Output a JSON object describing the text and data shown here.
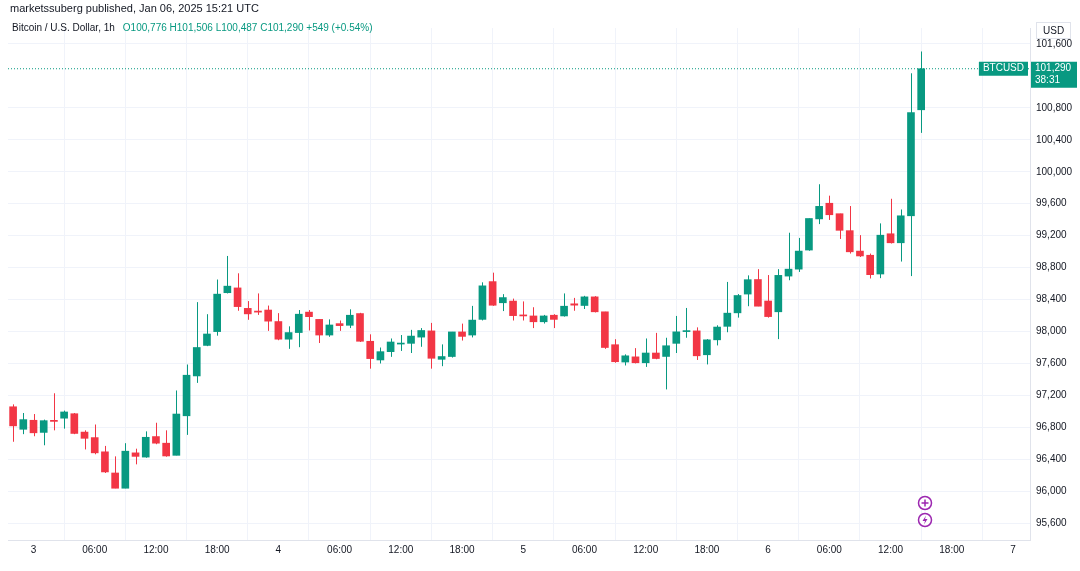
{
  "chart_data": {
    "type": "candlestick",
    "title": "Bitcoin / U.S. Dollar, 1h",
    "subtitle": "O100,776 H101,506 L100,487 C101,290 +549 (+0.54%)",
    "ylabel": "USD",
    "annotations": [
      "marketssuberg published, Jan 06, 2025 15:21 UTC",
      "38:31",
      "101,290"
    ],
    "x": [
      "2025-01-02T22:00",
      "2025-01-02T23:00",
      "2025-01-03T00:00",
      "2025-01-03T01:00",
      "2025-01-03T02:00",
      "2025-01-03T03:00",
      "2025-01-03T04:00",
      "2025-01-03T05:00",
      "2025-01-03T06:00",
      "2025-01-03T07:00",
      "2025-01-03T08:00",
      "2025-01-03T09:00",
      "2025-01-03T10:00",
      "2025-01-03T11:00",
      "2025-01-03T12:00",
      "2025-01-03T13:00",
      "2025-01-03T14:00",
      "2025-01-03T15:00",
      "2025-01-03T16:00",
      "2025-01-03T17:00",
      "2025-01-03T18:00",
      "2025-01-03T19:00",
      "2025-01-03T20:00",
      "2025-01-03T21:00",
      "2025-01-03T22:00",
      "2025-01-03T23:00",
      "2025-01-04T00:00",
      "2025-01-04T01:00",
      "2025-01-04T02:00",
      "2025-01-04T03:00",
      "2025-01-04T04:00",
      "2025-01-04T05:00",
      "2025-01-04T06:00",
      "2025-01-04T07:00",
      "2025-01-04T08:00",
      "2025-01-04T09:00",
      "2025-01-04T10:00",
      "2025-01-04T11:00",
      "2025-01-04T12:00",
      "2025-01-04T13:00",
      "2025-01-04T14:00",
      "2025-01-04T15:00",
      "2025-01-04T16:00",
      "2025-01-04T17:00",
      "2025-01-04T18:00",
      "2025-01-04T19:00",
      "2025-01-04T20:00",
      "2025-01-04T21:00",
      "2025-01-04T22:00",
      "2025-01-04T23:00",
      "2025-01-05T00:00",
      "2025-01-05T01:00",
      "2025-01-05T02:00",
      "2025-01-05T03:00",
      "2025-01-05T04:00",
      "2025-01-05T05:00",
      "2025-01-05T06:00",
      "2025-01-05T07:00",
      "2025-01-05T08:00",
      "2025-01-05T09:00",
      "2025-01-05T10:00",
      "2025-01-05T11:00",
      "2025-01-05T12:00",
      "2025-01-05T13:00",
      "2025-01-05T14:00",
      "2025-01-05T15:00",
      "2025-01-05T16:00",
      "2025-01-05T17:00",
      "2025-01-05T18:00",
      "2025-01-05T19:00",
      "2025-01-05T20:00",
      "2025-01-05T21:00",
      "2025-01-05T22:00",
      "2025-01-05T23:00",
      "2025-01-06T00:00",
      "2025-01-06T01:00",
      "2025-01-06T02:00",
      "2025-01-06T03:00",
      "2025-01-06T04:00",
      "2025-01-06T05:00",
      "2025-01-06T06:00",
      "2025-01-06T07:00",
      "2025-01-06T08:00",
      "2025-01-06T09:00",
      "2025-01-06T10:00",
      "2025-01-06T11:00",
      "2025-01-06T12:00",
      "2025-01-06T13:00",
      "2025-01-06T14:00",
      "2025-01-06T15:00"
    ],
    "ohlc": [
      [
        97058,
        97088,
        96620,
        96819
      ],
      [
        96776,
        96980,
        96715,
        96897
      ],
      [
        96889,
        96967,
        96689,
        96732
      ],
      [
        96737,
        96897,
        96576,
        96884
      ],
      [
        96888,
        97227,
        96763,
        96875
      ],
      [
        96915,
        97010,
        96784,
        96993
      ],
      [
        96971,
        96980,
        96715,
        96724
      ],
      [
        96741,
        96763,
        96524,
        96663
      ],
      [
        96672,
        96836,
        96463,
        96481
      ],
      [
        96494,
        96568,
        96229,
        96242
      ],
      [
        96229,
        96437,
        96038,
        96038
      ],
      [
        96038,
        96602,
        96038,
        96502
      ],
      [
        96481,
        96533,
        96337,
        96437
      ],
      [
        96428,
        96750,
        96420,
        96676
      ],
      [
        96685,
        96858,
        96589,
        96602
      ],
      [
        96602,
        96763,
        96433,
        96442
      ],
      [
        96450,
        97262,
        96450,
        96967
      ],
      [
        96945,
        97587,
        96706,
        97453
      ],
      [
        97444,
        98368,
        97357,
        97800
      ],
      [
        97826,
        98217,
        97817,
        97969
      ],
      [
        97999,
        98651,
        97948,
        98468
      ],
      [
        98486,
        98946,
        98477,
        98568
      ],
      [
        98546,
        98729,
        98260,
        98312
      ],
      [
        98290,
        98381,
        98147,
        98221
      ],
      [
        98256,
        98477,
        98208,
        98243
      ],
      [
        98269,
        98325,
        98008,
        98130
      ],
      [
        98125,
        98230,
        97891,
        97904
      ],
      [
        97904,
        98065,
        97783,
        97987
      ],
      [
        97987,
        98269,
        97804,
        98217
      ],
      [
        98243,
        98269,
        98013,
        98186
      ],
      [
        98152,
        98152,
        97856,
        97956
      ],
      [
        97956,
        98152,
        97934,
        98082
      ],
      [
        98099,
        98138,
        98008,
        98074
      ],
      [
        98078,
        98278,
        98043,
        98204
      ],
      [
        98225,
        98234,
        97869,
        97878
      ],
      [
        97878,
        97965,
        97535,
        97661
      ],
      [
        97644,
        97800,
        97600,
        97748
      ],
      [
        97748,
        97913,
        97683,
        97869
      ],
      [
        97843,
        97956,
        97757,
        97852
      ],
      [
        97852,
        98021,
        97731,
        97943
      ],
      [
        97930,
        98043,
        97809,
        98013
      ],
      [
        98008,
        98108,
        97535,
        97665
      ],
      [
        97652,
        97839,
        97566,
        97687
      ],
      [
        97687,
        97995,
        97674,
        97995
      ],
      [
        97995,
        98099,
        97887,
        97939
      ],
      [
        97956,
        98321,
        97926,
        98143
      ],
      [
        98152,
        98616,
        98139,
        98572
      ],
      [
        98625,
        98737,
        98321,
        98329
      ],
      [
        98360,
        98468,
        98256,
        98425
      ],
      [
        98381,
        98412,
        98138,
        98199
      ],
      [
        98208,
        98377,
        98138,
        98195
      ],
      [
        98195,
        98304,
        98043,
        98122
      ],
      [
        98122,
        98208,
        98100,
        98195
      ],
      [
        98204,
        98217,
        98043,
        98152
      ],
      [
        98195,
        98477,
        98187,
        98317
      ],
      [
        98347,
        98421,
        98260,
        98330
      ],
      [
        98326,
        98447,
        98282,
        98434
      ],
      [
        98434,
        98443,
        98239,
        98247
      ],
      [
        98247,
        98247,
        97783,
        97800
      ],
      [
        97835,
        97904,
        97609,
        97622
      ],
      [
        97618,
        97714,
        97575,
        97696
      ],
      [
        97683,
        97792,
        97601,
        97609
      ],
      [
        97609,
        97913,
        97557,
        97731
      ],
      [
        97731,
        97983,
        97653,
        97662
      ],
      [
        97688,
        97922,
        97275,
        97822
      ],
      [
        97852,
        98195,
        97731,
        97996
      ],
      [
        97999,
        98295,
        97922,
        98008
      ],
      [
        98008,
        98052,
        97644,
        97696
      ],
      [
        97709,
        97905,
        97588,
        97896
      ],
      [
        97896,
        98078,
        97826,
        98056
      ],
      [
        98065,
        98621,
        97991,
        98230
      ],
      [
        98234,
        98469,
        98174,
        98451
      ],
      [
        98469,
        98703,
        98317,
        98649
      ],
      [
        98651,
        98781,
        98317,
        98317
      ],
      [
        98382,
        98707,
        98174,
        98187
      ],
      [
        98247,
        98781,
        97905,
        98703
      ],
      [
        98694,
        99237,
        98642,
        98781
      ],
      [
        98781,
        99172,
        98746,
        99007
      ],
      [
        99020,
        99415,
        99011,
        99415
      ],
      [
        99410,
        99844,
        99345,
        99567
      ],
      [
        99606,
        99701,
        99397,
        99462
      ],
      [
        99475,
        99475,
        99159,
        99267
      ],
      [
        99263,
        99571,
        98976,
        98998
      ],
      [
        99007,
        99207,
        98933,
        98946
      ],
      [
        98955,
        98976,
        98664,
        98712
      ],
      [
        98720,
        99354,
        98668,
        99206
      ],
      [
        99224,
        99662,
        99102,
        99111
      ],
      [
        99111,
        99528,
        98876,
        99449
      ],
      [
        99449,
        101233,
        98694,
        100741
      ],
      [
        100776,
        101506,
        100487,
        101290
      ]
    ],
    "colors": [
      "#f23645",
      "#089981",
      "#f23645",
      "#089981",
      "#f23645",
      "#089981",
      "#f23645",
      "#f23645",
      "#f23645",
      "#f23645",
      "#f23645",
      "#089981",
      "#f23645",
      "#089981",
      "#f23645",
      "#f23645",
      "#089981",
      "#089981",
      "#089981",
      "#089981",
      "#089981",
      "#089981",
      "#f23645",
      "#f23645",
      "#f23645",
      "#f23645",
      "#f23645",
      "#089981",
      "#089981",
      "#f23645",
      "#f23645",
      "#089981",
      "#f23645",
      "#089981",
      "#f23645",
      "#f23645",
      "#089981",
      "#089981",
      "#089981",
      "#089981",
      "#089981",
      "#f23645",
      "#089981",
      "#089981",
      "#f23645",
      "#089981",
      "#089981",
      "#f23645",
      "#089981",
      "#f23645",
      "#f23645",
      "#f23645",
      "#089981",
      "#f23645",
      "#089981",
      "#f23645",
      "#089981",
      "#f23645",
      "#f23645",
      "#f23645",
      "#089981",
      "#f23645",
      "#089981",
      "#f23645",
      "#089981",
      "#089981",
      "#089981",
      "#f23645",
      "#089981",
      "#089981",
      "#089981",
      "#089981",
      "#089981",
      "#f23645",
      "#f23645",
      "#089981",
      "#089981",
      "#089981",
      "#089981",
      "#089981",
      "#f23645",
      "#f23645",
      "#f23645",
      "#f23645",
      "#f23645",
      "#089981",
      "#f23645",
      "#089981",
      "#089981",
      "#089981"
    ],
    "xlim": [
      "2025-01-02T21:30",
      "2025-01-07T01:40"
    ],
    "xticks": [
      {
        "value": "2025-01-03T00:00",
        "label": "3"
      },
      {
        "value": "2025-01-03T06:00",
        "label": "06:00"
      },
      {
        "value": "2025-01-03T12:00",
        "label": "12:00"
      },
      {
        "value": "2025-01-03T18:00",
        "label": "18:00"
      },
      {
        "value": "2025-01-04T00:00",
        "label": "4"
      },
      {
        "value": "2025-01-04T06:00",
        "label": "06:00"
      },
      {
        "value": "2025-01-04T12:00",
        "label": "12:00"
      },
      {
        "value": "2025-01-04T18:00",
        "label": "18:00"
      },
      {
        "value": "2025-01-05T00:00",
        "label": "5"
      },
      {
        "value": "2025-01-05T06:00",
        "label": "06:00"
      },
      {
        "value": "2025-01-05T12:00",
        "label": "12:00"
      },
      {
        "value": "2025-01-05T18:00",
        "label": "18:00"
      },
      {
        "value": "2025-01-06T00:00",
        "label": "6"
      },
      {
        "value": "2025-01-06T06:00",
        "label": "06:00"
      },
      {
        "value": "2025-01-06T12:00",
        "label": "12:00"
      },
      {
        "value": "2025-01-06T18:00",
        "label": "18:00"
      },
      {
        "value": "2025-01-07T00:00",
        "label": "7"
      }
    ],
    "ylim": [
      95390,
      101800
    ],
    "yticks": [
      {
        "value": 95600,
        "label": "95,600"
      },
      {
        "value": 96000,
        "label": "96,000"
      },
      {
        "value": 96400,
        "label": "96,400"
      },
      {
        "value": 96800,
        "label": "96,800"
      },
      {
        "value": 97200,
        "label": "97,200"
      },
      {
        "value": 97600,
        "label": "97,600"
      },
      {
        "value": 98000,
        "label": "98,000"
      },
      {
        "value": 98400,
        "label": "98,400"
      },
      {
        "value": 98800,
        "label": "98,800"
      },
      {
        "value": 99200,
        "label": "99,200"
      },
      {
        "value": 99600,
        "label": "99,600"
      },
      {
        "value": 100000,
        "label": "100,000"
      },
      {
        "value": 100400,
        "label": "100,400"
      },
      {
        "value": 100800,
        "label": "100,800"
      },
      {
        "value": 101600,
        "label": "101,600"
      }
    ],
    "grid": true,
    "ref_lines": [
      {
        "axis": "y",
        "value": 101290,
        "label": "BTCUSD",
        "color": "#089981",
        "line_style": "dotted"
      }
    ]
  }
}
